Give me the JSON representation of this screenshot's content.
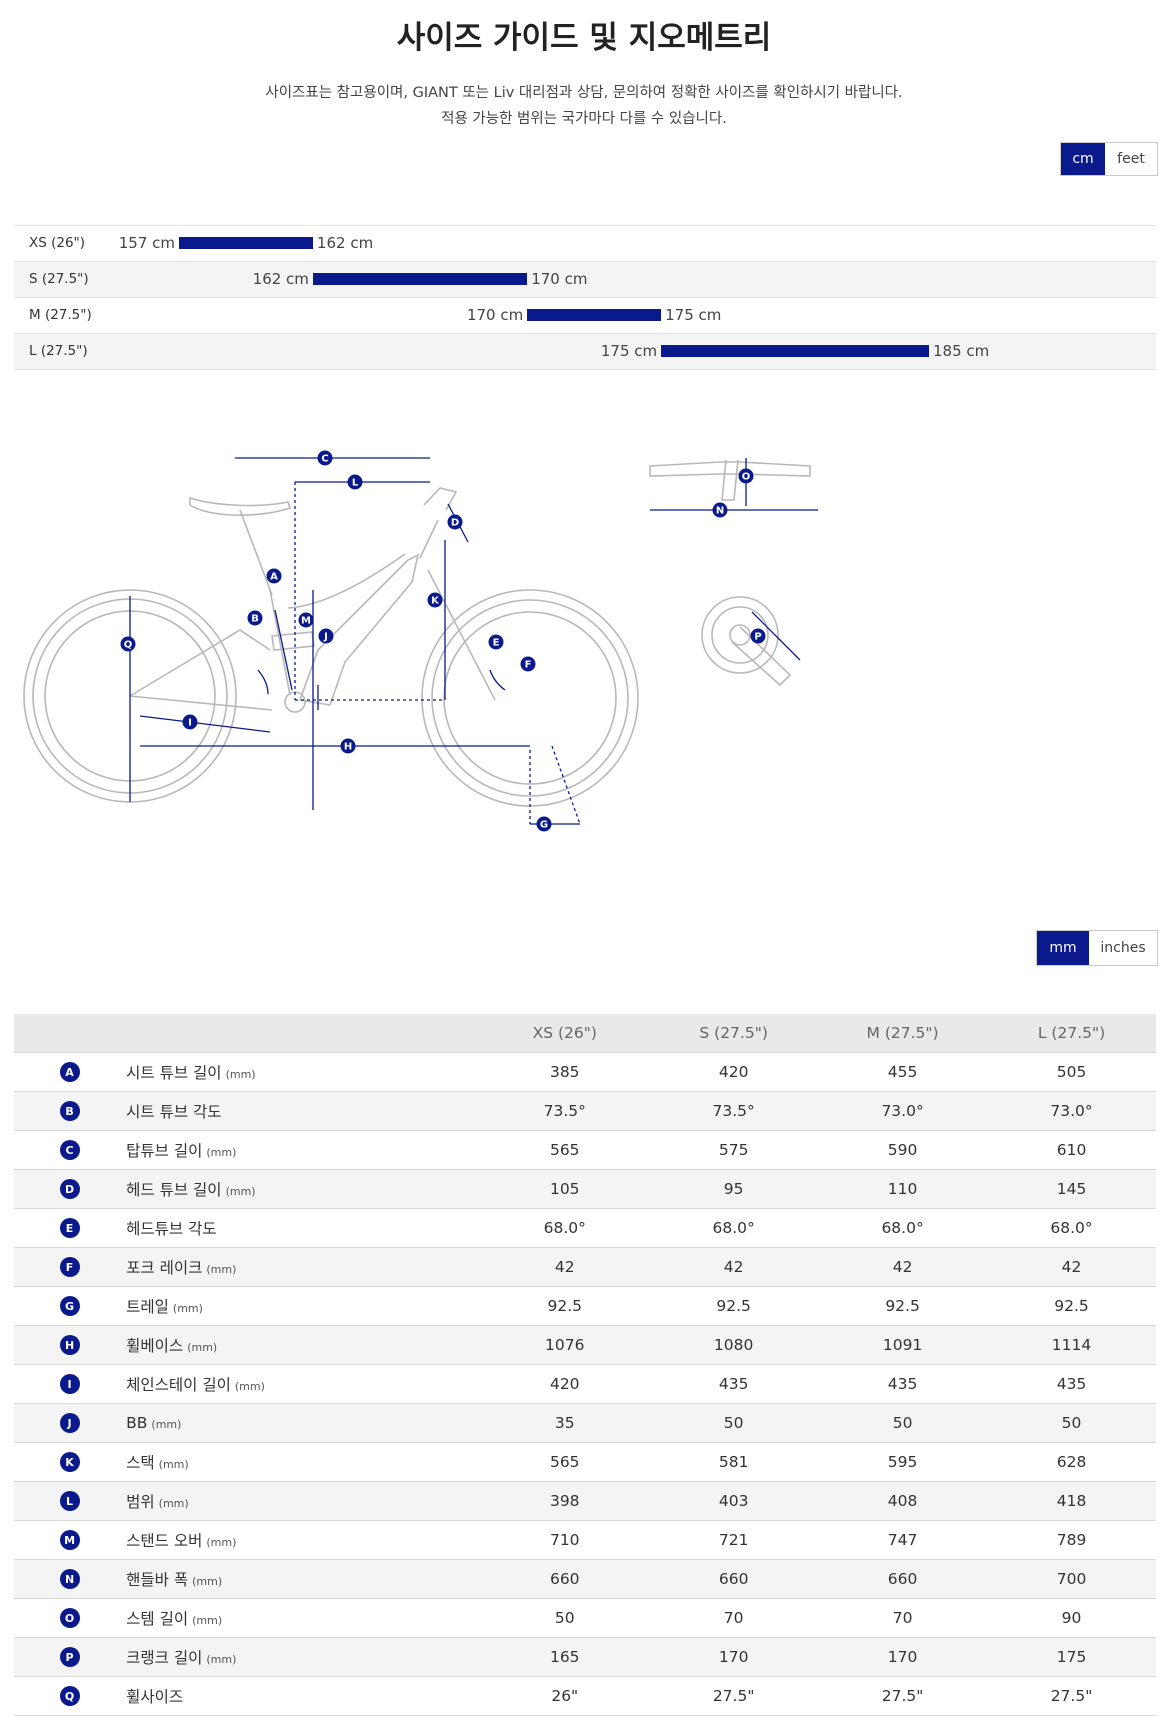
{
  "page": {
    "title": "사이즈 가이드 및 지오메트리",
    "subtitle_line1": "사이즈표는 참고용이며, GIANT 또는 Liv 대리점과 상담, 문의하여 정확한 사이즈를 확인하시기 바랍니다.",
    "subtitle_line2": "적용 가능한 범위는 국가마다 다를 수 있습니다."
  },
  "height_units": {
    "options": [
      "cm",
      "feet"
    ],
    "selected": "cm"
  },
  "size_ranges": [
    {
      "size": "XS (26\")",
      "min_label": "157 cm",
      "max_label": "162 cm",
      "min": 157,
      "max": 162
    },
    {
      "size": "S (27.5\")",
      "min_label": "162 cm",
      "max_label": "170 cm",
      "min": 162,
      "max": 170
    },
    {
      "size": "M (27.5\")",
      "min_label": "170 cm",
      "max_label": "175 cm",
      "min": 170,
      "max": 175
    },
    {
      "size": "L (27.5\")",
      "min_label": "175 cm",
      "max_label": "185 cm",
      "min": 175,
      "max": 185
    }
  ],
  "diagram_letters": [
    "A",
    "B",
    "C",
    "D",
    "E",
    "F",
    "G",
    "H",
    "I",
    "J",
    "K",
    "L",
    "M",
    "N",
    "O",
    "P",
    "Q"
  ],
  "measure_units": {
    "options": [
      "mm",
      "inches"
    ],
    "selected": "mm"
  },
  "geometry": {
    "headers": [
      "XS (26\")",
      "S (27.5\")",
      "M (27.5\")",
      "L (27.5\")"
    ],
    "rows": [
      {
        "letter": "A",
        "name": "시트 튜브 길이",
        "unit": "(mm)",
        "values": [
          "385",
          "420",
          "455",
          "505"
        ]
      },
      {
        "letter": "B",
        "name": "시트 튜브 각도",
        "unit": "",
        "values": [
          "73.5°",
          "73.5°",
          "73.0°",
          "73.0°"
        ]
      },
      {
        "letter": "C",
        "name": "탑튜브 길이",
        "unit": "(mm)",
        "values": [
          "565",
          "575",
          "590",
          "610"
        ]
      },
      {
        "letter": "D",
        "name": "헤드 튜브 길이",
        "unit": "(mm)",
        "values": [
          "105",
          "95",
          "110",
          "145"
        ]
      },
      {
        "letter": "E",
        "name": "헤드튜브 각도",
        "unit": "",
        "values": [
          "68.0°",
          "68.0°",
          "68.0°",
          "68.0°"
        ]
      },
      {
        "letter": "F",
        "name": "포크 레이크",
        "unit": "(mm)",
        "values": [
          "42",
          "42",
          "42",
          "42"
        ]
      },
      {
        "letter": "G",
        "name": "트레일",
        "unit": "(mm)",
        "values": [
          "92.5",
          "92.5",
          "92.5",
          "92.5"
        ]
      },
      {
        "letter": "H",
        "name": "휠베이스",
        "unit": "(mm)",
        "values": [
          "1076",
          "1080",
          "1091",
          "1114"
        ]
      },
      {
        "letter": "I",
        "name": "체인스테이 길이",
        "unit": "(mm)",
        "values": [
          "420",
          "435",
          "435",
          "435"
        ]
      },
      {
        "letter": "J",
        "name": "BB",
        "unit": "(mm)",
        "values": [
          "35",
          "50",
          "50",
          "50"
        ]
      },
      {
        "letter": "K",
        "name": "스택",
        "unit": "(mm)",
        "values": [
          "565",
          "581",
          "595",
          "628"
        ]
      },
      {
        "letter": "L",
        "name": "범위",
        "unit": "(mm)",
        "values": [
          "398",
          "403",
          "408",
          "418"
        ]
      },
      {
        "letter": "M",
        "name": "스탠드 오버",
        "unit": "(mm)",
        "values": [
          "710",
          "721",
          "747",
          "789"
        ]
      },
      {
        "letter": "N",
        "name": "핸들바 폭",
        "unit": "(mm)",
        "values": [
          "660",
          "660",
          "660",
          "700"
        ]
      },
      {
        "letter": "O",
        "name": "스템 길이",
        "unit": "(mm)",
        "values": [
          "50",
          "70",
          "70",
          "90"
        ]
      },
      {
        "letter": "P",
        "name": "크랭크 길이",
        "unit": "(mm)",
        "values": [
          "165",
          "170",
          "170",
          "175"
        ]
      },
      {
        "letter": "Q",
        "name": "휠사이즈",
        "unit": "",
        "values": [
          "26\"",
          "27.5\"",
          "27.5\"",
          "27.5\""
        ]
      }
    ]
  },
  "colors": {
    "accent": "#0a1a8c",
    "diagram_line": "#b8b8b8"
  }
}
